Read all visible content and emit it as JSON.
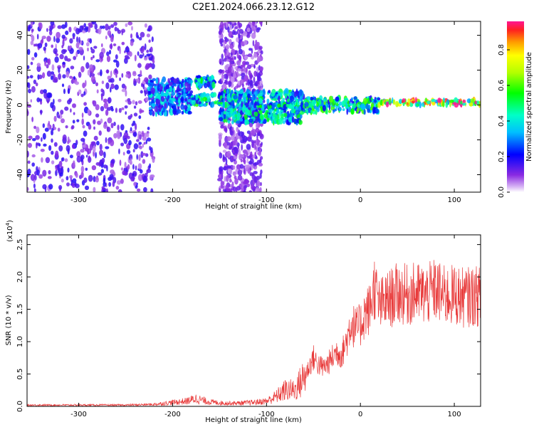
{
  "title": "C2E1.2024.066.23.12.G12",
  "chart_data": [
    {
      "type": "heatmap",
      "xlabel": "Height of straight line (km)",
      "ylabel": "Frequency (Hz)",
      "xlim": [
        -355,
        128
      ],
      "ylim": [
        -50,
        48
      ],
      "x_ticks": [
        -300,
        -200,
        -100,
        0,
        100
      ],
      "y_ticks": [
        40,
        20,
        0,
        -20,
        -40
      ],
      "colorbar": {
        "label": "Normalized spectral amplitude",
        "range": [
          0.0,
          0.96
        ],
        "ticks": [
          "0.0",
          "0.2",
          "0.4",
          "0.6",
          "0.8"
        ],
        "colormap": "rainbow"
      },
      "features": [
        {
          "height_range": [
            -355,
            -220
          ],
          "frequency_range": [
            -50,
            48
          ],
          "amplitude": 0.15,
          "description": "broadband scattered noise"
        },
        {
          "height_range": [
            -225,
            -180
          ],
          "frequency_range": [
            -5,
            15
          ],
          "amplitude": 0.35
        },
        {
          "height_range": [
            -175,
            -155
          ],
          "frequency_range": [
            10,
            16
          ],
          "amplitude": 0.45
        },
        {
          "height_range": [
            -180,
            -150
          ],
          "frequency_range": [
            0,
            6
          ],
          "amplitude": 0.5
        },
        {
          "height_range": [
            -150,
            -105
          ],
          "frequency_range": [
            -50,
            48
          ],
          "amplitude": 0.12,
          "description": "vertical noise band"
        },
        {
          "height_range": [
            -150,
            -60
          ],
          "frequency_range": [
            -10,
            8
          ],
          "amplitude": 0.45
        },
        {
          "height_range": [
            -60,
            20
          ],
          "frequency_range": [
            -4,
            4
          ],
          "amplitude": 0.5
        },
        {
          "height_range": [
            20,
            128
          ],
          "frequency_range": [
            0,
            3
          ],
          "amplitude": 0.85,
          "description": "strong narrow line near 1 Hz"
        }
      ]
    },
    {
      "type": "line",
      "xlabel": "Height of straight line (km)",
      "ylabel": "SNR (10 * v/v)",
      "y_scale_label": "(x10",
      "y_scale_exp": "4",
      "y_scale_close": ")",
      "xlim": [
        -355,
        128
      ],
      "ylim": [
        0,
        2.65
      ],
      "x_ticks": [
        -300,
        -200,
        -100,
        0,
        100
      ],
      "y_ticks": [
        "0.0",
        "0.5",
        "1.0",
        "1.5",
        "2.0",
        "2.5"
      ],
      "color": "#e83a3a",
      "series": [
        {
          "x": [
            -355,
            -300,
            -250,
            -220,
            -200,
            -185,
            -175,
            -165,
            -155,
            -145,
            -130,
            -115,
            -100,
            -90,
            -80,
            -70,
            -60,
            -50,
            -45,
            -40,
            -35,
            -30,
            -25,
            -20,
            -15,
            -10,
            -5,
            0,
            5,
            10,
            15,
            20,
            25,
            30,
            40,
            50,
            60,
            70,
            80,
            90,
            100,
            110,
            120,
            128
          ],
          "y": [
            0.02,
            0.02,
            0.02,
            0.03,
            0.06,
            0.08,
            0.12,
            0.08,
            0.06,
            0.05,
            0.05,
            0.06,
            0.08,
            0.15,
            0.25,
            0.25,
            0.45,
            0.75,
            0.65,
            0.6,
            0.65,
            0.75,
            0.85,
            0.8,
            1.0,
            1.3,
            1.2,
            1.25,
            1.45,
            1.5,
            1.85,
            1.55,
            1.6,
            1.65,
            1.75,
            1.72,
            1.75,
            1.72,
            1.8,
            1.7,
            1.72,
            1.68,
            1.7,
            1.7
          ]
        }
      ]
    }
  ]
}
